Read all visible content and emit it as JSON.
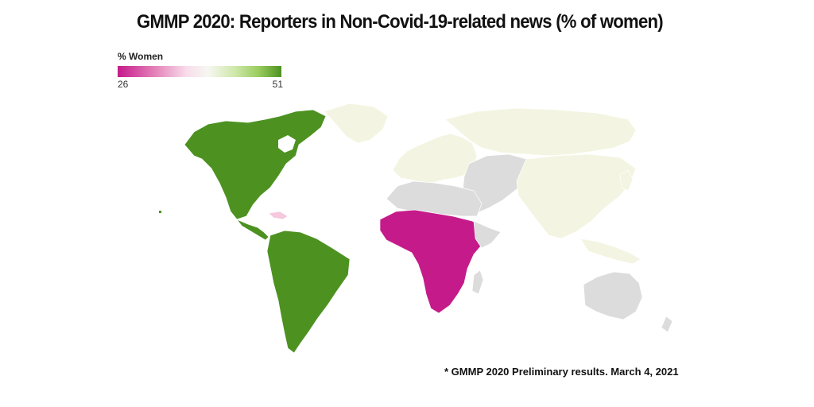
{
  "title": "GMMP 2020: Reporters in Non-Covid-19-related news (% of women)",
  "legend": {
    "label": "% Women",
    "min": "26",
    "max": "51",
    "colors": [
      "#c51b8a",
      "#f7f7f2",
      "#4d9221"
    ]
  },
  "map": {
    "colors": {
      "high": "#4d9221",
      "low": "#c51b8a",
      "mid": "#f3f5e2",
      "no_data": "#dcdcdc",
      "light_pink": "#f4c9dd"
    }
  },
  "footnote": "* GMMP 2020 Preliminary results. March 4, 2021"
}
